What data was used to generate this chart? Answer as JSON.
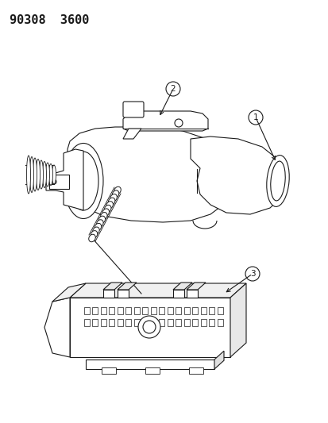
{
  "title": "90308  3600",
  "background_color": "#ffffff",
  "line_color": "#1a1a1a",
  "figsize": [
    4.14,
    5.33
  ],
  "dpi": 100,
  "title_fontsize": 11
}
